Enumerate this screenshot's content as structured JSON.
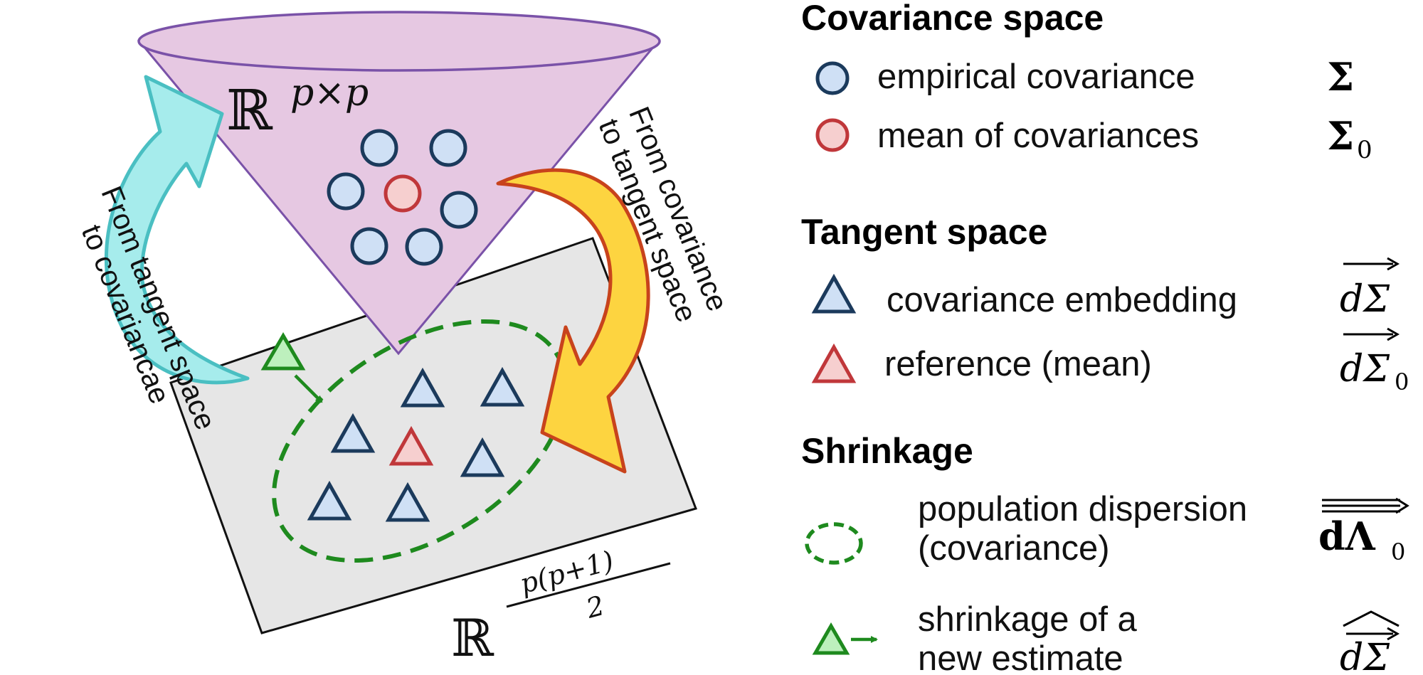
{
  "left": {
    "cone_label": "ℝ",
    "cone_label_sup": "p×p",
    "tangent_label": "ℝ",
    "tangent_label_sup_num": "p(p+1)",
    "tangent_label_sup_den": "2",
    "arrow_up_label": [
      "From tangent space",
      "to covariancae"
    ],
    "arrow_down_label": [
      "From covariance",
      "to tangent space"
    ]
  },
  "legend": {
    "sections": [
      {
        "heading": "Covariance space",
        "items": [
          {
            "marker": "circle-blue",
            "label": "empirical covariance",
            "symbol": "Σ"
          },
          {
            "marker": "circle-red",
            "label": "mean of covariances",
            "symbol": "Σ",
            "symbol_sub": "0"
          }
        ]
      },
      {
        "heading": "Tangent space",
        "items": [
          {
            "marker": "triangle-blue",
            "label": "covariance embedding",
            "symbol": "dΣ"
          },
          {
            "marker": "triangle-red",
            "label": "reference (mean)",
            "symbol": "dΣ",
            "symbol_sub": "0"
          }
        ]
      },
      {
        "heading": "Shrinkage",
        "items": [
          {
            "marker": "dashed-ellipse",
            "label_lines": [
              "population dispersion",
              "(covariance)"
            ],
            "symbol": "dΛ",
            "symbol_sub": "0"
          },
          {
            "marker": "green-triangle-arrow",
            "label_lines": [
              "shrinkage of a",
              "new estimate"
            ],
            "symbol": "dΣ"
          }
        ]
      }
    ]
  },
  "colors": {
    "cone_fill": "#e6c8e2",
    "cone_stroke": "#7a52a8",
    "plane_fill": "#e6e6e6",
    "blue_fill": "#cfe0f5",
    "blue_stroke": "#1b3a5c",
    "red_fill": "#f6cfcf",
    "red_stroke": "#c0373a",
    "green": "#1e8a1e",
    "green_fill": "#bdf0bd",
    "cyan_fill": "#a6ecec",
    "cyan_stroke": "#4abfc2",
    "yellow_fill": "#fdd440",
    "orange_stroke": "#c8431c"
  }
}
